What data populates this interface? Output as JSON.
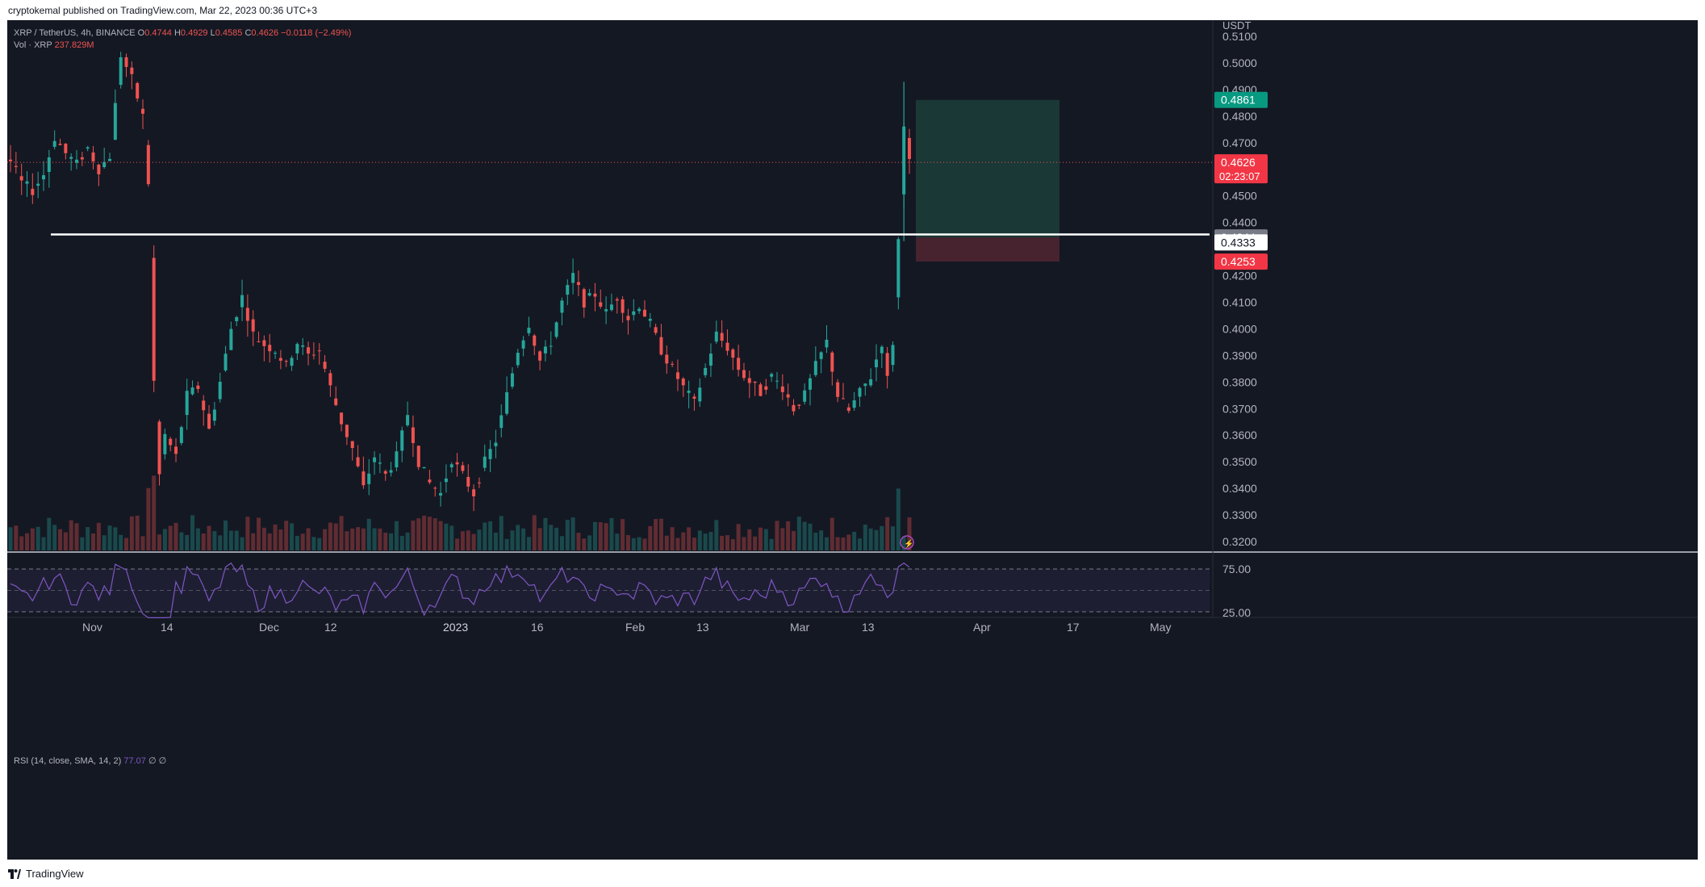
{
  "header": {
    "published": "cryptokemal published on TradingView.com, Mar 22, 2023 00:36 UTC+3"
  },
  "legend": {
    "symbol": "XRP / TetherUS, 4h, BINANCE",
    "o_label": "O",
    "o_val": "0.4744",
    "h_label": "H",
    "h_val": "0.4929",
    "l_label": "L",
    "l_val": "0.4585",
    "c_label": "C",
    "c_val": "0.4626",
    "change": "−0.0118 (−2.49%)",
    "vol_label": "Vol · XRP",
    "vol_val": "237.829M",
    "rsi_label": "RSI (14, close, SMA, 14, 2)",
    "rsi_val": "77.07",
    "rsi_extra": "∅ ∅"
  },
  "footer": {
    "brand": "TradingView"
  },
  "colors": {
    "background": "#141823",
    "up": "#26a69a",
    "down": "#ef5350",
    "rsi_line": "#7e57c2",
    "target_zone": "#1a3a37",
    "stop_zone": "#4a2330",
    "axis_text": "#b2b5be"
  },
  "chart_data": {
    "type": "candlestick",
    "title": "XRP / TetherUS, 4h, BINANCE",
    "currency": "USDT",
    "y_axis_ticks": [
      "0.5100",
      "0.5000",
      "0.4900",
      "0.4800",
      "0.4700",
      "0.4600",
      "0.4500",
      "0.4400",
      "0.4300",
      "0.4200",
      "0.4100",
      "0.4000",
      "0.3900",
      "0.3800",
      "0.3700",
      "0.3600",
      "0.3500",
      "0.3400",
      "0.3300",
      "0.3200"
    ],
    "y_range": [
      0.32,
      0.51
    ],
    "x_axis_ticks": [
      "Nov",
      "14",
      "Dec",
      "12",
      "2023",
      "16",
      "Feb",
      "13",
      "Mar",
      "13",
      "Apr",
      "17",
      "May"
    ],
    "price_path": [
      [
        0,
        0.463
      ],
      [
        2,
        0.455
      ],
      [
        4,
        0.452
      ],
      [
        6,
        0.458
      ],
      [
        8,
        0.472
      ],
      [
        10,
        0.466
      ],
      [
        12,
        0.462
      ],
      [
        14,
        0.468
      ],
      [
        16,
        0.46
      ],
      [
        18,
        0.465
      ],
      [
        20,
        0.503
      ],
      [
        22,
        0.494
      ],
      [
        24,
        0.48
      ],
      [
        25,
        0.455
      ],
      [
        26,
        0.38
      ],
      [
        27,
        0.345
      ],
      [
        28,
        0.36
      ],
      [
        30,
        0.352
      ],
      [
        32,
        0.375
      ],
      [
        34,
        0.378
      ],
      [
        36,
        0.362
      ],
      [
        38,
        0.38
      ],
      [
        40,
        0.4
      ],
      [
        42,
        0.412
      ],
      [
        44,
        0.398
      ],
      [
        46,
        0.394
      ],
      [
        48,
        0.392
      ],
      [
        50,
        0.386
      ],
      [
        52,
        0.395
      ],
      [
        54,
        0.39
      ],
      [
        56,
        0.392
      ],
      [
        58,
        0.378
      ],
      [
        60,
        0.365
      ],
      [
        62,
        0.355
      ],
      [
        64,
        0.34
      ],
      [
        66,
        0.352
      ],
      [
        68,
        0.345
      ],
      [
        70,
        0.352
      ],
      [
        72,
        0.368
      ],
      [
        74,
        0.35
      ],
      [
        76,
        0.342
      ],
      [
        78,
        0.338
      ],
      [
        80,
        0.351
      ],
      [
        82,
        0.345
      ],
      [
        84,
        0.338
      ],
      [
        86,
        0.35
      ],
      [
        88,
        0.358
      ],
      [
        90,
        0.375
      ],
      [
        92,
        0.392
      ],
      [
        94,
        0.402
      ],
      [
        96,
        0.388
      ],
      [
        98,
        0.395
      ],
      [
        100,
        0.41
      ],
      [
        102,
        0.42
      ],
      [
        104,
        0.41
      ],
      [
        106,
        0.413
      ],
      [
        108,
        0.406
      ],
      [
        110,
        0.412
      ],
      [
        112,
        0.404
      ],
      [
        114,
        0.409
      ],
      [
        116,
        0.402
      ],
      [
        118,
        0.392
      ],
      [
        120,
        0.385
      ],
      [
        122,
        0.378
      ],
      [
        124,
        0.372
      ],
      [
        126,
        0.385
      ],
      [
        128,
        0.398
      ],
      [
        130,
        0.393
      ],
      [
        132,
        0.385
      ],
      [
        134,
        0.38
      ],
      [
        136,
        0.376
      ],
      [
        138,
        0.382
      ],
      [
        140,
        0.378
      ],
      [
        142,
        0.37
      ],
      [
        144,
        0.375
      ],
      [
        146,
        0.386
      ],
      [
        148,
        0.395
      ],
      [
        150,
        0.375
      ],
      [
        152,
        0.369
      ],
      [
        154,
        0.376
      ],
      [
        156,
        0.382
      ],
      [
        158,
        0.395
      ],
      [
        159,
        0.381
      ],
      [
        160,
        0.395
      ],
      [
        161,
        0.4333
      ],
      [
        162,
        0.478
      ],
      [
        163,
        0.4626
      ]
    ],
    "levels": {
      "horizontal_line": 0.4355,
      "last_price": "0.4626",
      "countdown": "02:23:07",
      "target": "0.4861",
      "entry": "0.4344",
      "marker": "0.4333",
      "stop": "0.4253"
    },
    "rsi": {
      "ticks": [
        "75.00",
        "25.00"
      ],
      "upper": 75,
      "lower": 25,
      "last": 77.07
    }
  }
}
